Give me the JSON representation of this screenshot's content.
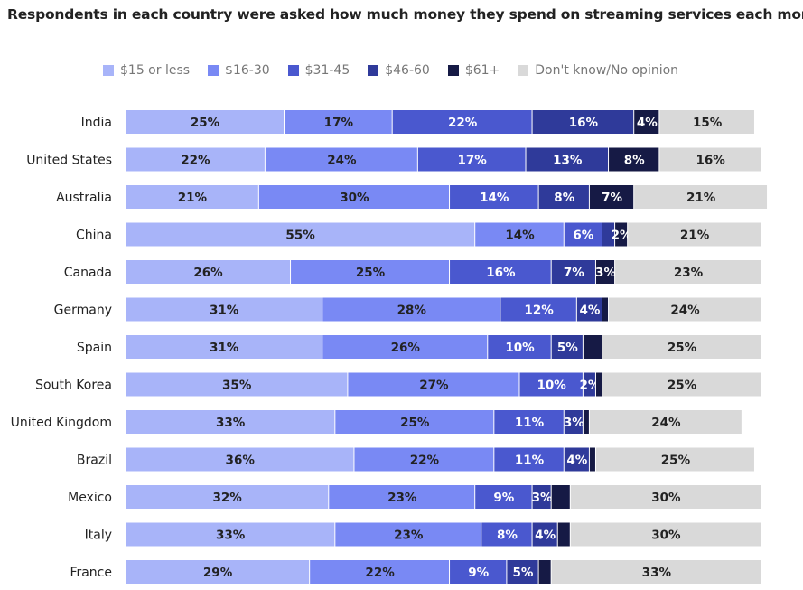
{
  "chart_data": {
    "type": "bar",
    "orientation": "horizontal",
    "stacked": true,
    "title": "Respondents in each country were asked how much money they spend on streaming services each month",
    "legend_position": "top",
    "categories": [
      "India",
      "United States",
      "Australia",
      "China",
      "Canada",
      "Germany",
      "Spain",
      "South Korea",
      "United Kingdom",
      "Brazil",
      "Mexico",
      "Italy",
      "France"
    ],
    "series": [
      {
        "name": "$15 or less",
        "color": "#a8b4f9",
        "label_color": "#222222",
        "values": [
          25,
          22,
          21,
          55,
          26,
          31,
          31,
          35,
          33,
          36,
          32,
          33,
          29
        ]
      },
      {
        "name": "$16-30",
        "color": "#7989f4",
        "label_color": "#222222",
        "values": [
          17,
          24,
          30,
          14,
          25,
          28,
          26,
          27,
          25,
          22,
          23,
          23,
          22
        ]
      },
      {
        "name": "$31-45",
        "color": "#4a58cf",
        "label_color": "#ffffff",
        "values": [
          22,
          17,
          14,
          6,
          16,
          12,
          10,
          10,
          11,
          11,
          9,
          8,
          9
        ]
      },
      {
        "name": "$46-60",
        "color": "#2f3a9a",
        "label_color": "#ffffff",
        "values": [
          16,
          13,
          8,
          2,
          7,
          4,
          5,
          2,
          3,
          4,
          3,
          4,
          5
        ]
      },
      {
        "name": "$61+",
        "color": "#161a45",
        "label_color": "#ffffff",
        "values": [
          4,
          8,
          7,
          2,
          3,
          1,
          3,
          1,
          1,
          1,
          3,
          2,
          2
        ]
      },
      {
        "name": "Don't know/No opinion",
        "color": "#d9d9d9",
        "label_color": "#222222",
        "values": [
          15,
          16,
          21,
          21,
          23,
          24,
          25,
          25,
          24,
          25,
          30,
          30,
          33
        ]
      }
    ],
    "data_labels": [
      [
        "25%",
        "17%",
        "22%",
        "16%",
        "4%",
        "15%"
      ],
      [
        "22%",
        "24%",
        "17%",
        "13%",
        "8%",
        "16%"
      ],
      [
        "21%",
        "30%",
        "14%",
        "8%",
        "7%",
        "21%"
      ],
      [
        "55%",
        "14%",
        "6%",
        "",
        "2%",
        "21%"
      ],
      [
        "26%",
        "25%",
        "16%",
        "7%",
        "3%",
        "23%"
      ],
      [
        "31%",
        "28%",
        "12%",
        "4%",
        "",
        "24%"
      ],
      [
        "31%",
        "26%",
        "10%",
        "5%",
        "",
        "25%"
      ],
      [
        "35%",
        "27%",
        "10%",
        "2%",
        "",
        "25%"
      ],
      [
        "33%",
        "25%",
        "11%",
        "3%",
        "",
        "24%"
      ],
      [
        "36%",
        "22%",
        "11%",
        "4%",
        "",
        "25%"
      ],
      [
        "32%",
        "23%",
        "9%",
        "3%",
        "",
        "30%"
      ],
      [
        "33%",
        "23%",
        "8%",
        "4%",
        "",
        "30%"
      ],
      [
        "29%",
        "22%",
        "9%",
        "5%",
        "",
        "33%"
      ]
    ],
    "xlim": [
      0,
      100
    ],
    "grid": false
  }
}
